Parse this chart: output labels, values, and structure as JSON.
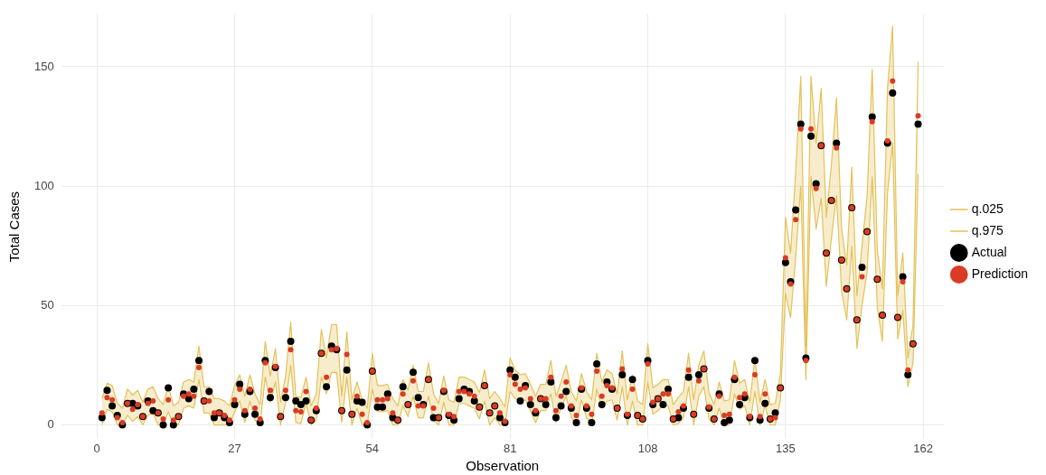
{
  "chart_data": {
    "type": "scatter",
    "xlabel": "Observation",
    "ylabel": "Total Cases",
    "x": [
      1,
      2,
      3,
      4,
      5,
      6,
      7,
      8,
      9,
      10,
      11,
      12,
      13,
      14,
      15,
      16,
      17,
      18,
      19,
      20,
      21,
      22,
      23,
      24,
      25,
      26,
      27,
      28,
      29,
      30,
      31,
      32,
      33,
      34,
      35,
      36,
      37,
      38,
      39,
      40,
      41,
      42,
      43,
      44,
      45,
      46,
      47,
      48,
      49,
      50,
      51,
      52,
      53,
      54,
      55,
      56,
      57,
      58,
      59,
      60,
      61,
      62,
      63,
      64,
      65,
      66,
      67,
      68,
      69,
      70,
      71,
      72,
      73,
      74,
      75,
      76,
      77,
      78,
      79,
      80,
      81,
      82,
      83,
      84,
      85,
      86,
      87,
      88,
      89,
      90,
      91,
      92,
      93,
      94,
      95,
      96,
      97,
      98,
      99,
      100,
      101,
      102,
      103,
      104,
      105,
      106,
      107,
      108,
      109,
      110,
      111,
      112,
      113,
      114,
      115,
      116,
      117,
      118,
      119,
      120,
      121,
      122,
      123,
      124,
      125,
      126,
      127,
      128,
      129,
      130,
      131,
      132,
      133,
      134,
      135,
      136,
      137,
      138,
      139,
      140,
      141,
      142,
      143,
      144,
      145,
      146,
      147,
      148,
      149,
      150,
      151,
      152,
      153,
      154,
      155,
      156,
      157,
      158,
      159,
      160,
      161
    ],
    "series": [
      {
        "name": "q.025",
        "type": "line",
        "marker": "none",
        "color": "#e3c25a",
        "values": [
          0,
          6.5,
          5.5,
          0,
          0,
          4,
          1.5,
          3.5,
          0,
          4,
          5,
          0,
          0,
          5.5,
          0,
          0,
          7,
          8,
          7,
          19,
          5,
          5,
          0,
          0,
          0,
          0,
          5.5,
          10,
          1,
          10,
          2,
          0,
          20,
          9.5,
          18,
          0,
          9.5,
          25,
          1,
          0.5,
          9,
          0,
          2,
          20,
          13,
          22,
          22,
          1,
          20,
          0,
          7,
          0,
          0,
          15,
          5.5,
          5.5,
          6,
          0,
          0,
          8,
          3.5,
          12,
          3,
          3,
          12,
          2,
          0,
          9.5,
          0,
          0,
          9,
          9,
          8,
          7,
          2.5,
          10,
          0,
          3,
          0,
          0,
          14,
          11,
          10,
          10.5,
          6,
          1,
          6,
          6,
          13,
          1,
          7,
          12,
          3,
          0,
          10.5,
          3,
          0,
          15,
          7,
          10,
          10.5,
          2,
          16,
          0,
          10,
          0,
          0,
          18,
          4.5,
          6,
          8,
          8,
          0,
          0.5,
          3,
          16,
          0,
          12,
          16,
          2.5,
          0,
          7,
          0,
          0,
          13,
          6.5,
          8,
          0,
          14,
          0,
          8,
          0,
          0,
          10.5,
          55,
          45,
          70,
          100,
          19,
          104,
          82,
          95,
          58,
          78,
          96,
          56,
          44,
          75,
          32,
          50,
          64,
          104,
          49,
          35,
          97,
          118,
          36,
          48,
          16,
          26,
          105
        ]
      },
      {
        "name": "q.975",
        "type": "line",
        "marker": "none",
        "color": "#e3c25a",
        "values": [
          11,
          17.5,
          16.5,
          9,
          7,
          15,
          12.5,
          14.5,
          9.5,
          15,
          16,
          11,
          8.5,
          16.5,
          8,
          9.5,
          18,
          19,
          18,
          33,
          16,
          16,
          11,
          11,
          10,
          8,
          16.5,
          21,
          12,
          21,
          13,
          8.5,
          35,
          20.5,
          32,
          9.5,
          20.5,
          43,
          12,
          11.5,
          20,
          8,
          13,
          40,
          28,
          42,
          42,
          12,
          39,
          10.5,
          18,
          10.5,
          7,
          30,
          16.5,
          16.5,
          17,
          11,
          8,
          19,
          14.5,
          25,
          14,
          14,
          26,
          13,
          9,
          20.5,
          10.5,
          9.5,
          20,
          20,
          19,
          18,
          13.5,
          23,
          11,
          14,
          11,
          7.5,
          28,
          23,
          21,
          21.5,
          17,
          12,
          17,
          17,
          27,
          12,
          18,
          25,
          14,
          10,
          21.5,
          14,
          10.5,
          30,
          18,
          23,
          21.5,
          13,
          31,
          10.5,
          21,
          10,
          8.5,
          34,
          15.5,
          17,
          19,
          19,
          8.5,
          11.5,
          14,
          30,
          10.5,
          25,
          31,
          13.5,
          8.5,
          18,
          10,
          10.5,
          27,
          17.5,
          19,
          9.5,
          28,
          9.5,
          19,
          8.5,
          9,
          21.5,
          87,
          72,
          106,
          146,
          33,
          146,
          118,
          141,
          87,
          109,
          137,
          82,
          67,
          108,
          54,
          75,
          96,
          149,
          73,
          57,
          141,
          167,
          54,
          72,
          28,
          42,
          152
        ]
      },
      {
        "name": "Actual",
        "marker": "circle",
        "color": "#000000",
        "values": [
          3,
          14.5,
          8,
          4,
          0,
          9,
          9,
          8,
          3.5,
          10,
          6,
          5,
          0,
          15.5,
          0,
          3.5,
          13,
          11,
          15,
          27,
          10,
          14,
          3,
          5,
          3,
          1,
          8.5,
          17,
          4.5,
          14,
          4.5,
          1,
          27,
          11.5,
          24,
          3.5,
          11.5,
          35,
          10,
          8.5,
          10,
          2,
          6,
          30,
          16,
          33,
          31.5,
          6,
          23,
          4.5,
          10,
          9.5,
          0,
          22.5,
          7.5,
          7.5,
          13,
          3,
          2,
          16,
          8.5,
          22,
          11.5,
          8.5,
          19,
          3,
          3,
          14,
          4,
          2,
          11,
          15,
          14,
          10,
          7.5,
          16.5,
          5,
          8,
          3,
          1,
          23,
          20,
          10,
          16.5,
          8.5,
          5,
          11,
          8.5,
          18,
          3,
          8,
          14,
          7,
          1,
          15,
          7,
          1,
          25.5,
          8.5,
          18,
          15,
          7,
          21,
          4,
          19,
          4,
          2.5,
          27,
          8.5,
          11,
          8.5,
          15,
          2.5,
          3,
          7,
          20,
          4.5,
          21,
          23.5,
          7,
          2.5,
          13,
          1,
          2,
          19,
          8.5,
          11.5,
          3,
          27,
          2,
          9,
          2.5,
          5,
          15.5,
          68,
          60,
          90,
          126,
          28,
          121,
          101,
          117,
          72,
          94,
          118,
          69,
          57,
          91,
          44,
          66,
          81,
          129,
          61,
          46,
          118,
          139,
          45,
          62,
          21,
          34,
          126
        ]
      },
      {
        "name": "Prediction",
        "marker": "circle",
        "color": "#d93b24",
        "lower": [
          0,
          6.5,
          5.5,
          0,
          0,
          4,
          1.5,
          3.5,
          0,
          4,
          5,
          0,
          0,
          5.5,
          0,
          0,
          7,
          8,
          7,
          19,
          5,
          5,
          0,
          0,
          0,
          0,
          5.5,
          10,
          1,
          10,
          2,
          0,
          20,
          9.5,
          18,
          0,
          9.5,
          25,
          1,
          0.5,
          9,
          0,
          2,
          20,
          13,
          22,
          22,
          1,
          20,
          0,
          7,
          0,
          0,
          15,
          5.5,
          5.5,
          6,
          0,
          0,
          8,
          3.5,
          12,
          3,
          3,
          12,
          2,
          0,
          9.5,
          0,
          0,
          9,
          9,
          8,
          7,
          2.5,
          10,
          0,
          3,
          0,
          0,
          14,
          11,
          10,
          10.5,
          6,
          1,
          6,
          6,
          13,
          1,
          7,
          12,
          3,
          0,
          10.5,
          3,
          0,
          15,
          7,
          10,
          10.5,
          2,
          16,
          0,
          10,
          0,
          0,
          18,
          4.5,
          6,
          8,
          8,
          0,
          0.5,
          3,
          16,
          0,
          12,
          16,
          2.5,
          0,
          7,
          0,
          0,
          13,
          6.5,
          8,
          0,
          14,
          0,
          8,
          0,
          0,
          10.5,
          55,
          45,
          70,
          100,
          19,
          104,
          82,
          95,
          58,
          78,
          96,
          56,
          44,
          75,
          32,
          50,
          64,
          104,
          49,
          35,
          97,
          118,
          36,
          48,
          16,
          26,
          105
        ],
        "upper": [
          11,
          17.5,
          16.5,
          9,
          7,
          15,
          12.5,
          14.5,
          9.5,
          15,
          16,
          11,
          8.5,
          16.5,
          8,
          9.5,
          18,
          19,
          18,
          33,
          16,
          16,
          11,
          11,
          10,
          8,
          16.5,
          21,
          12,
          21,
          13,
          8.5,
          35,
          20.5,
          32,
          9.5,
          20.5,
          43,
          12,
          11.5,
          20,
          8,
          13,
          40,
          28,
          42,
          42,
          12,
          39,
          10.5,
          18,
          10.5,
          7,
          30,
          16.5,
          16.5,
          17,
          11,
          8,
          19,
          14.5,
          25,
          14,
          14,
          26,
          13,
          9,
          20.5,
          10.5,
          9.5,
          20,
          20,
          19,
          18,
          13.5,
          23,
          11,
          14,
          11,
          7.5,
          28,
          23,
          21,
          21.5,
          17,
          12,
          17,
          17,
          27,
          12,
          18,
          25,
          14,
          10,
          21.5,
          14,
          10.5,
          30,
          18,
          23,
          21.5,
          13,
          31,
          10.5,
          21,
          10,
          8.5,
          34,
          15.5,
          17,
          19,
          19,
          8.5,
          11.5,
          14,
          30,
          10.5,
          25,
          31,
          13.5,
          8.5,
          18,
          10,
          10.5,
          27,
          17.5,
          19,
          9.5,
          28,
          9.5,
          19,
          8.5,
          9,
          21.5,
          87,
          72,
          106,
          146,
          33,
          146,
          118,
          141,
          87,
          109,
          137,
          82,
          67,
          108,
          54,
          75,
          96,
          149,
          73,
          57,
          141,
          167,
          54,
          72,
          28,
          42,
          152
        ],
        "values": [
          5,
          11.5,
          10.5,
          3,
          1,
          9,
          6.5,
          8.5,
          3.5,
          9,
          10,
          5,
          2.5,
          10.5,
          2,
          3.5,
          12,
          13,
          12,
          24,
          10,
          10,
          5,
          5,
          4,
          2,
          10.5,
          15,
          6,
          15,
          7,
          2.5,
          26,
          14.5,
          24.5,
          3.5,
          14.5,
          31.5,
          6,
          5.5,
          14,
          2,
          7,
          30,
          20,
          31.5,
          32,
          6,
          29.5,
          4.5,
          12,
          4.5,
          1,
          22.5,
          10.5,
          10.5,
          11,
          5,
          2,
          13,
          8.5,
          18.5,
          8,
          8,
          19,
          7,
          3,
          14.5,
          4.5,
          3.5,
          14,
          14,
          13,
          12,
          7.5,
          16.5,
          5,
          8,
          5,
          1.5,
          21,
          17,
          15,
          15.5,
          11,
          6,
          11,
          11,
          20,
          6,
          12,
          18,
          8,
          4,
          15.5,
          8,
          4.5,
          22.5,
          12,
          16.5,
          15.5,
          7,
          23.5,
          4.5,
          15,
          4,
          2.5,
          25.5,
          9.5,
          11,
          13,
          13,
          2.5,
          5.5,
          8,
          23,
          4.5,
          18.5,
          23.5,
          7.5,
          2.5,
          12,
          4,
          4.5,
          20,
          11.5,
          13,
          3.5,
          21,
          3.5,
          13,
          2.5,
          3,
          15.5,
          70,
          59,
          86,
          124,
          27,
          124,
          99,
          117,
          72,
          94,
          116,
          69,
          57,
          91,
          44,
          62,
          81,
          127,
          61,
          46,
          119,
          144,
          45,
          60,
          23,
          34,
          129.5
        ]
      }
    ],
    "xlim": [
      -7,
      166
    ],
    "xticks": [
      0,
      27,
      54,
      81,
      108,
      135,
      162
    ],
    "ylim": [
      -6,
      172
    ],
    "yticks": [
      0,
      50,
      100,
      150
    ],
    "grid": true,
    "legend": "right"
  }
}
